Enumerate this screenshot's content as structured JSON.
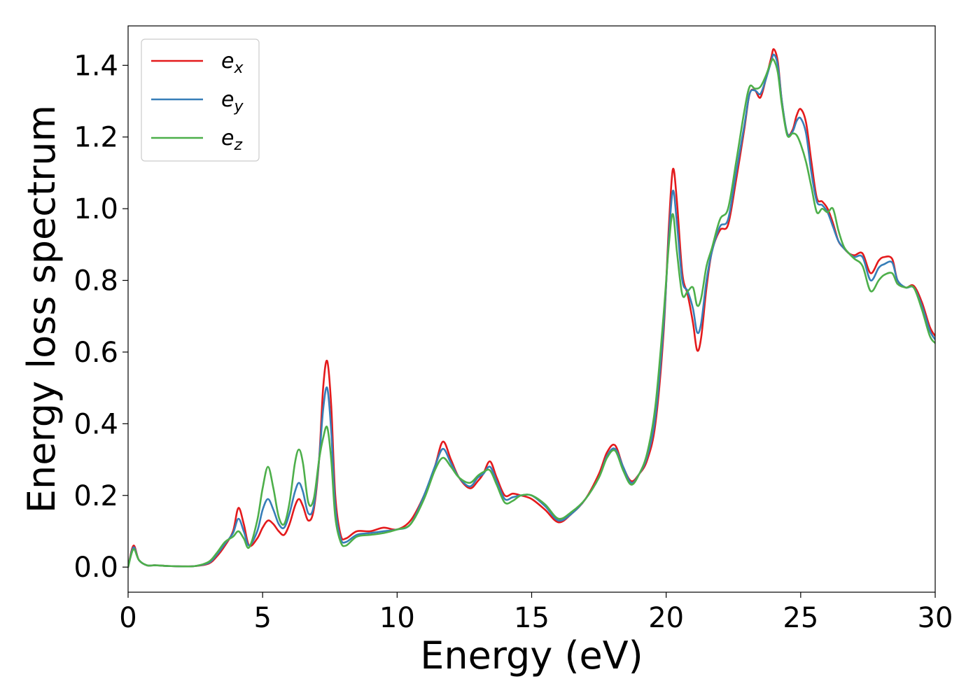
{
  "chart_data": {
    "type": "line",
    "title": "",
    "xlabel": "Energy (eV)",
    "ylabel": "Energy loss spectrum",
    "xlim": [
      0,
      30
    ],
    "ylim": [
      -0.07,
      1.51
    ],
    "xticks": [
      0,
      5,
      10,
      15,
      20,
      25,
      30
    ],
    "yticks": [
      0.0,
      0.2,
      0.4,
      0.6,
      0.8,
      1.0,
      1.2,
      1.4
    ],
    "grid": false,
    "legend_position": "top-left",
    "series": [
      {
        "name": "e_x",
        "name_base": "e",
        "name_sub": "x",
        "color": "#e41a1c",
        "x": [
          0,
          0.2,
          0.4,
          0.7,
          1.0,
          1.5,
          2.0,
          2.5,
          3.0,
          3.3,
          3.6,
          3.9,
          4.1,
          4.3,
          4.5,
          4.8,
          5.0,
          5.2,
          5.4,
          5.6,
          5.8,
          6.0,
          6.2,
          6.35,
          6.5,
          6.7,
          6.9,
          7.1,
          7.25,
          7.4,
          7.55,
          7.7,
          7.9,
          8.1,
          8.5,
          9.0,
          9.5,
          10.0,
          10.5,
          11.0,
          11.4,
          11.7,
          12.0,
          12.3,
          12.7,
          13.0,
          13.2,
          13.45,
          13.7,
          14.0,
          14.3,
          14.6,
          15.0,
          15.5,
          16.0,
          16.5,
          17.0,
          17.5,
          17.8,
          18.1,
          18.4,
          18.7,
          19.0,
          19.3,
          19.6,
          19.9,
          20.1,
          20.25,
          20.4,
          20.6,
          20.8,
          21.0,
          21.15,
          21.3,
          21.5,
          21.7,
          22.0,
          22.3,
          22.6,
          22.9,
          23.1,
          23.3,
          23.5,
          23.7,
          23.9,
          24.0,
          24.15,
          24.3,
          24.5,
          24.7,
          24.85,
          25.0,
          25.2,
          25.4,
          25.6,
          25.8,
          26.0,
          26.2,
          26.4,
          26.6,
          26.8,
          27.0,
          27.3,
          27.6,
          27.9,
          28.1,
          28.4,
          28.6,
          28.9,
          29.2,
          29.5,
          29.8,
          30.0
        ],
        "y": [
          0.0,
          0.06,
          0.02,
          0.005,
          0.005,
          0.003,
          0.002,
          0.003,
          0.01,
          0.03,
          0.06,
          0.1,
          0.165,
          0.12,
          0.06,
          0.08,
          0.11,
          0.13,
          0.12,
          0.1,
          0.09,
          0.12,
          0.17,
          0.19,
          0.17,
          0.13,
          0.16,
          0.3,
          0.5,
          0.575,
          0.45,
          0.2,
          0.09,
          0.08,
          0.1,
          0.1,
          0.11,
          0.105,
          0.13,
          0.2,
          0.28,
          0.35,
          0.3,
          0.25,
          0.22,
          0.24,
          0.26,
          0.295,
          0.25,
          0.2,
          0.205,
          0.2,
          0.19,
          0.16,
          0.125,
          0.15,
          0.19,
          0.26,
          0.32,
          0.34,
          0.28,
          0.24,
          0.26,
          0.3,
          0.4,
          0.65,
          0.95,
          1.11,
          1.02,
          0.82,
          0.76,
          0.68,
          0.605,
          0.64,
          0.78,
          0.88,
          0.94,
          0.955,
          1.08,
          1.22,
          1.32,
          1.33,
          1.31,
          1.36,
          1.42,
          1.445,
          1.41,
          1.3,
          1.21,
          1.22,
          1.26,
          1.278,
          1.24,
          1.13,
          1.03,
          1.02,
          1.0,
          0.96,
          0.91,
          0.89,
          0.875,
          0.87,
          0.875,
          0.82,
          0.855,
          0.865,
          0.86,
          0.8,
          0.78,
          0.785,
          0.74,
          0.67,
          0.645
        ]
      },
      {
        "name": "e_y",
        "name_base": "e",
        "name_sub": "y",
        "color": "#377eb8",
        "x": [
          0,
          0.2,
          0.4,
          0.7,
          1.0,
          1.5,
          2.0,
          2.5,
          3.0,
          3.3,
          3.6,
          3.9,
          4.1,
          4.3,
          4.5,
          4.8,
          5.0,
          5.2,
          5.4,
          5.6,
          5.8,
          6.0,
          6.2,
          6.35,
          6.5,
          6.7,
          6.9,
          7.1,
          7.25,
          7.4,
          7.55,
          7.7,
          7.9,
          8.1,
          8.5,
          9.0,
          9.5,
          10.0,
          10.5,
          11.0,
          11.4,
          11.7,
          12.0,
          12.3,
          12.7,
          13.0,
          13.2,
          13.45,
          13.7,
          14.0,
          14.3,
          14.6,
          15.0,
          15.5,
          16.0,
          16.5,
          17.0,
          17.5,
          17.8,
          18.1,
          18.4,
          18.7,
          19.0,
          19.3,
          19.6,
          19.9,
          20.1,
          20.25,
          20.4,
          20.6,
          20.8,
          21.0,
          21.15,
          21.3,
          21.5,
          21.7,
          22.0,
          22.3,
          22.6,
          22.9,
          23.1,
          23.3,
          23.5,
          23.7,
          23.9,
          24.0,
          24.15,
          24.3,
          24.5,
          24.7,
          24.85,
          25.0,
          25.2,
          25.4,
          25.6,
          25.8,
          26.0,
          26.2,
          26.4,
          26.6,
          26.8,
          27.0,
          27.3,
          27.6,
          27.9,
          28.1,
          28.4,
          28.6,
          28.9,
          29.2,
          29.5,
          29.8,
          30.0
        ],
        "y": [
          0.0,
          0.055,
          0.02,
          0.005,
          0.005,
          0.003,
          0.002,
          0.003,
          0.012,
          0.035,
          0.065,
          0.095,
          0.135,
          0.1,
          0.06,
          0.1,
          0.16,
          0.19,
          0.16,
          0.12,
          0.11,
          0.15,
          0.21,
          0.235,
          0.21,
          0.15,
          0.17,
          0.3,
          0.44,
          0.5,
          0.38,
          0.17,
          0.08,
          0.07,
          0.09,
          0.095,
          0.1,
          0.105,
          0.12,
          0.2,
          0.28,
          0.33,
          0.29,
          0.25,
          0.225,
          0.25,
          0.26,
          0.28,
          0.24,
          0.19,
          0.195,
          0.2,
          0.2,
          0.17,
          0.13,
          0.15,
          0.19,
          0.25,
          0.31,
          0.33,
          0.28,
          0.235,
          0.26,
          0.31,
          0.42,
          0.67,
          0.92,
          1.05,
          0.96,
          0.8,
          0.77,
          0.72,
          0.655,
          0.68,
          0.8,
          0.88,
          0.95,
          0.97,
          1.1,
          1.23,
          1.32,
          1.33,
          1.32,
          1.36,
          1.41,
          1.43,
          1.4,
          1.3,
          1.21,
          1.215,
          1.245,
          1.252,
          1.21,
          1.1,
          1.02,
          1.01,
          0.99,
          0.95,
          0.91,
          0.89,
          0.875,
          0.865,
          0.865,
          0.8,
          0.835,
          0.845,
          0.85,
          0.8,
          0.78,
          0.78,
          0.73,
          0.66,
          0.635
        ]
      },
      {
        "name": "e_z",
        "name_base": "e",
        "name_sub": "z",
        "color": "#4daf4a",
        "x": [
          0,
          0.2,
          0.4,
          0.7,
          1.0,
          1.5,
          2.0,
          2.5,
          3.0,
          3.3,
          3.6,
          3.9,
          4.1,
          4.3,
          4.5,
          4.8,
          5.0,
          5.2,
          5.4,
          5.6,
          5.8,
          6.0,
          6.2,
          6.35,
          6.5,
          6.7,
          6.9,
          7.1,
          7.25,
          7.4,
          7.55,
          7.7,
          7.9,
          8.1,
          8.5,
          9.0,
          9.5,
          10.0,
          10.5,
          11.0,
          11.4,
          11.7,
          12.0,
          12.3,
          12.7,
          13.0,
          13.2,
          13.45,
          13.7,
          14.0,
          14.3,
          14.6,
          15.0,
          15.5,
          16.0,
          16.5,
          17.0,
          17.5,
          17.8,
          18.1,
          18.4,
          18.7,
          19.0,
          19.3,
          19.6,
          19.9,
          20.1,
          20.25,
          20.4,
          20.6,
          20.8,
          21.0,
          21.15,
          21.3,
          21.5,
          21.7,
          22.0,
          22.3,
          22.6,
          22.9,
          23.1,
          23.3,
          23.5,
          23.7,
          23.9,
          24.0,
          24.15,
          24.3,
          24.5,
          24.7,
          24.85,
          25.0,
          25.2,
          25.4,
          25.6,
          25.8,
          26.0,
          26.2,
          26.4,
          26.6,
          26.8,
          27.0,
          27.3,
          27.6,
          27.9,
          28.1,
          28.4,
          28.6,
          28.9,
          29.2,
          29.5,
          29.8,
          30.0
        ],
        "y": [
          0.0,
          0.05,
          0.02,
          0.005,
          0.005,
          0.003,
          0.002,
          0.003,
          0.015,
          0.04,
          0.07,
          0.085,
          0.1,
          0.08,
          0.055,
          0.13,
          0.22,
          0.28,
          0.22,
          0.14,
          0.12,
          0.18,
          0.29,
          0.328,
          0.29,
          0.18,
          0.19,
          0.3,
          0.36,
          0.39,
          0.3,
          0.14,
          0.07,
          0.06,
          0.085,
          0.09,
          0.095,
          0.105,
          0.12,
          0.19,
          0.27,
          0.305,
          0.28,
          0.25,
          0.235,
          0.255,
          0.265,
          0.27,
          0.23,
          0.18,
          0.185,
          0.2,
          0.2,
          0.175,
          0.135,
          0.155,
          0.19,
          0.25,
          0.305,
          0.325,
          0.27,
          0.23,
          0.26,
          0.32,
          0.45,
          0.7,
          0.9,
          0.985,
          0.88,
          0.76,
          0.77,
          0.78,
          0.73,
          0.75,
          0.84,
          0.89,
          0.97,
          1.0,
          1.13,
          1.27,
          1.34,
          1.335,
          1.34,
          1.37,
          1.41,
          1.415,
          1.38,
          1.29,
          1.205,
          1.21,
          1.205,
          1.18,
          1.13,
          1.06,
          0.99,
          1.0,
          0.99,
          1.0,
          0.94,
          0.895,
          0.875,
          0.86,
          0.84,
          0.77,
          0.8,
          0.815,
          0.82,
          0.79,
          0.78,
          0.78,
          0.72,
          0.645,
          0.625
        ]
      }
    ]
  }
}
